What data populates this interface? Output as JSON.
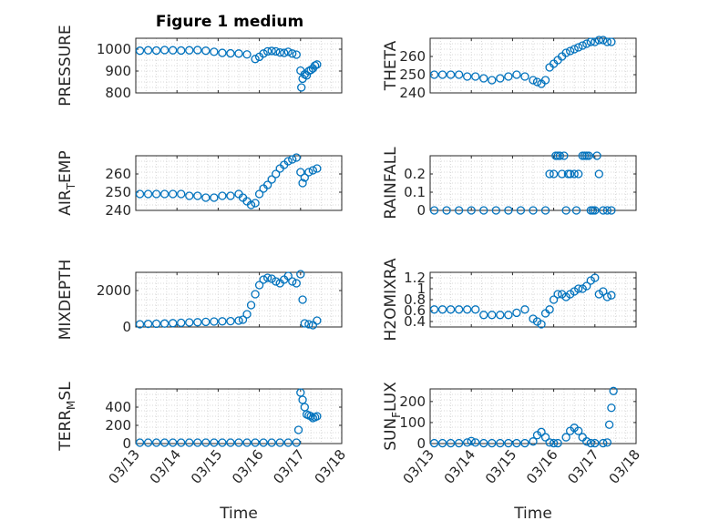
{
  "figure_title": "Figure 1 medium",
  "marker_color": "#0072BD",
  "xticklabels": [
    "03/13",
    "03/14",
    "03/15",
    "03/16",
    "03/17",
    "03/18"
  ],
  "chart_data": [
    {
      "type": "scatter",
      "ylabel": "PRESSURE",
      "xlabel": "",
      "xlim": [
        0,
        5
      ],
      "ylim": [
        800,
        1050
      ],
      "yticks": [
        800,
        900,
        1000
      ],
      "yticklabels": [
        "800",
        "900",
        "1000"
      ],
      "xticklabels_visible": false,
      "x": [
        0.1,
        0.3,
        0.5,
        0.7,
        0.9,
        1.1,
        1.3,
        1.5,
        1.7,
        1.9,
        2.1,
        2.3,
        2.5,
        2.7,
        2.9,
        3.0,
        3.1,
        3.2,
        3.3,
        3.4,
        3.5,
        3.6,
        3.7,
        3.8,
        3.9,
        4.0,
        4.02,
        4.05,
        4.1,
        4.15,
        4.2,
        4.25,
        4.3,
        4.35,
        4.4
      ],
      "y": [
        993,
        995,
        994,
        996,
        995,
        994,
        995,
        996,
        993,
        988,
        983,
        981,
        980,
        976,
        955,
        965,
        980,
        990,
        992,
        990,
        985,
        983,
        988,
        980,
        975,
        902,
        825,
        865,
        885,
        880,
        900,
        905,
        912,
        925,
        930
      ]
    },
    {
      "type": "scatter",
      "ylabel": "THETA",
      "xlabel": "",
      "xlim": [
        0,
        5
      ],
      "ylim": [
        240,
        270
      ],
      "yticks": [
        240,
        250,
        260
      ],
      "yticklabels": [
        "240",
        "250",
        "260"
      ],
      "xticklabels_visible": false,
      "x": [
        0.1,
        0.3,
        0.5,
        0.7,
        0.9,
        1.1,
        1.3,
        1.5,
        1.7,
        1.9,
        2.1,
        2.3,
        2.5,
        2.6,
        2.7,
        2.8,
        2.9,
        3.0,
        3.1,
        3.2,
        3.3,
        3.4,
        3.5,
        3.6,
        3.7,
        3.8,
        3.9,
        4.0,
        4.1,
        4.2,
        4.3,
        4.4
      ],
      "y": [
        250,
        250,
        250,
        250,
        249,
        249,
        248,
        247,
        248,
        249,
        250,
        249,
        247,
        246,
        245,
        247,
        254,
        256,
        258,
        260,
        262,
        263,
        264,
        265,
        266,
        267,
        268,
        268,
        269,
        269,
        268,
        268
      ]
    },
    {
      "type": "scatter",
      "ylabel": "AIR_TEMP",
      "xlabel": "",
      "xlim": [
        0,
        5
      ],
      "ylim": [
        240,
        270
      ],
      "yticks": [
        240,
        250,
        260
      ],
      "yticklabels": [
        "240",
        "250",
        "260"
      ],
      "xticklabels_visible": false,
      "x": [
        0.1,
        0.3,
        0.5,
        0.7,
        0.9,
        1.1,
        1.3,
        1.5,
        1.7,
        1.9,
        2.1,
        2.3,
        2.5,
        2.6,
        2.7,
        2.8,
        2.9,
        3.0,
        3.1,
        3.2,
        3.3,
        3.4,
        3.5,
        3.6,
        3.7,
        3.8,
        3.9,
        4.0,
        4.05,
        4.1,
        4.2,
        4.3,
        4.4
      ],
      "y": [
        249,
        249,
        249,
        249,
        249,
        249,
        248,
        248,
        247,
        247,
        248,
        248,
        249,
        247,
        245,
        243,
        244,
        249,
        252,
        254,
        257,
        260,
        263,
        265,
        267,
        268,
        269,
        261,
        255,
        258,
        261,
        262,
        263
      ]
    },
    {
      "type": "scatter",
      "ylabel": "RAINFALL",
      "xlabel": "",
      "xlim": [
        0,
        5
      ],
      "ylim": [
        0,
        0.3
      ],
      "yticks": [
        0,
        0.1,
        0.2
      ],
      "yticklabels": [
        "0",
        "0.1",
        "0.2"
      ],
      "xticklabels_visible": false,
      "x": [
        0.1,
        0.4,
        0.7,
        1.0,
        1.3,
        1.6,
        1.9,
        2.2,
        2.5,
        2.8,
        2.9,
        3.0,
        3.05,
        3.1,
        3.15,
        3.2,
        3.25,
        3.3,
        3.35,
        3.4,
        3.5,
        3.55,
        3.6,
        3.7,
        3.75,
        3.8,
        3.85,
        3.9,
        3.95,
        4.0,
        4.05,
        4.1,
        4.2,
        4.3,
        4.4
      ],
      "y": [
        0,
        0,
        0,
        0,
        0,
        0,
        0,
        0,
        0,
        0,
        0.2,
        0.2,
        0.3,
        0.3,
        0.3,
        0.2,
        0.3,
        0,
        0.2,
        0.2,
        0.2,
        0,
        0.2,
        0.3,
        0.3,
        0.3,
        0.3,
        0,
        0,
        0,
        0.3,
        0.2,
        0,
        0,
        0
      ]
    },
    {
      "type": "scatter",
      "ylabel": "MIXDEPTH",
      "xlabel": "",
      "xlim": [
        0,
        5
      ],
      "ylim": [
        0,
        3000
      ],
      "yticks": [
        0,
        2000
      ],
      "yticklabels": [
        "0",
        "2000"
      ],
      "xticklabels_visible": false,
      "x": [
        0.1,
        0.3,
        0.5,
        0.7,
        0.9,
        1.1,
        1.3,
        1.5,
        1.7,
        1.9,
        2.1,
        2.3,
        2.5,
        2.6,
        2.7,
        2.8,
        2.9,
        3.0,
        3.1,
        3.2,
        3.3,
        3.4,
        3.5,
        3.6,
        3.7,
        3.8,
        3.9,
        4.0,
        4.05,
        4.1,
        4.2,
        4.3,
        4.4
      ],
      "y": [
        150,
        170,
        180,
        190,
        210,
        230,
        250,
        260,
        280,
        300,
        310,
        320,
        350,
        400,
        700,
        1200,
        1800,
        2300,
        2600,
        2700,
        2650,
        2500,
        2400,
        2600,
        2800,
        2500,
        2400,
        2900,
        1500,
        200,
        150,
        100,
        350
      ]
    },
    {
      "type": "scatter",
      "ylabel": "H2OMIXRA",
      "xlabel": "",
      "xlim": [
        0,
        5
      ],
      "ylim": [
        0.3,
        1.3
      ],
      "yticks": [
        0.4,
        0.6,
        0.8,
        1,
        1.2
      ],
      "yticklabels": [
        "0.4",
        "0.6",
        "0.8",
        "1",
        "1.2"
      ],
      "xticklabels_visible": false,
      "x": [
        0.1,
        0.3,
        0.5,
        0.7,
        0.9,
        1.1,
        1.3,
        1.5,
        1.7,
        1.9,
        2.1,
        2.3,
        2.5,
        2.6,
        2.7,
        2.8,
        2.9,
        3.0,
        3.1,
        3.2,
        3.3,
        3.4,
        3.5,
        3.6,
        3.7,
        3.8,
        3.9,
        4.0,
        4.1,
        4.2,
        4.3,
        4.4
      ],
      "y": [
        0.62,
        0.62,
        0.62,
        0.62,
        0.62,
        0.62,
        0.52,
        0.52,
        0.52,
        0.52,
        0.56,
        0.62,
        0.45,
        0.4,
        0.35,
        0.55,
        0.62,
        0.8,
        0.9,
        0.9,
        0.85,
        0.9,
        0.95,
        1.0,
        1.0,
        1.05,
        1.15,
        1.2,
        0.9,
        0.95,
        0.85,
        0.88
      ]
    },
    {
      "type": "scatter",
      "ylabel": "TERR_MSL",
      "xlabel": "Time",
      "xlim": [
        0,
        5
      ],
      "ylim": [
        0,
        600
      ],
      "yticks": [
        0,
        200,
        400
      ],
      "yticklabels": [
        "0",
        "200",
        "400"
      ],
      "xticklabels_visible": true,
      "x": [
        0.1,
        0.3,
        0.5,
        0.7,
        0.9,
        1.1,
        1.3,
        1.5,
        1.7,
        1.9,
        2.1,
        2.3,
        2.5,
        2.7,
        2.9,
        3.1,
        3.3,
        3.5,
        3.7,
        3.9,
        3.95,
        4.0,
        4.05,
        4.1,
        4.15,
        4.2,
        4.25,
        4.3,
        4.35,
        4.4
      ],
      "y": [
        10,
        10,
        10,
        10,
        10,
        10,
        10,
        10,
        10,
        10,
        10,
        10,
        10,
        10,
        10,
        10,
        10,
        10,
        10,
        10,
        150,
        560,
        480,
        400,
        320,
        310,
        300,
        280,
        290,
        300
      ]
    },
    {
      "type": "scatter",
      "ylabel": "SUN_FLUX",
      "xlabel": "Time",
      "xlim": [
        0,
        5
      ],
      "ylim": [
        0,
        260
      ],
      "yticks": [
        0,
        100,
        200
      ],
      "yticklabels": [
        "0",
        "100",
        "200"
      ],
      "xticklabels_visible": true,
      "x": [
        0.1,
        0.3,
        0.5,
        0.7,
        0.9,
        1.0,
        1.1,
        1.3,
        1.5,
        1.7,
        1.9,
        2.1,
        2.3,
        2.5,
        2.6,
        2.7,
        2.8,
        2.9,
        3.0,
        3.1,
        3.3,
        3.4,
        3.5,
        3.6,
        3.7,
        3.8,
        3.9,
        4.0,
        4.2,
        4.3,
        4.35,
        4.4,
        4.45
      ],
      "y": [
        2,
        2,
        2,
        2,
        5,
        12,
        5,
        2,
        2,
        2,
        2,
        2,
        2,
        10,
        40,
        55,
        30,
        5,
        2,
        2,
        30,
        60,
        75,
        60,
        30,
        10,
        2,
        2,
        2,
        5,
        90,
        170,
        250
      ]
    }
  ]
}
